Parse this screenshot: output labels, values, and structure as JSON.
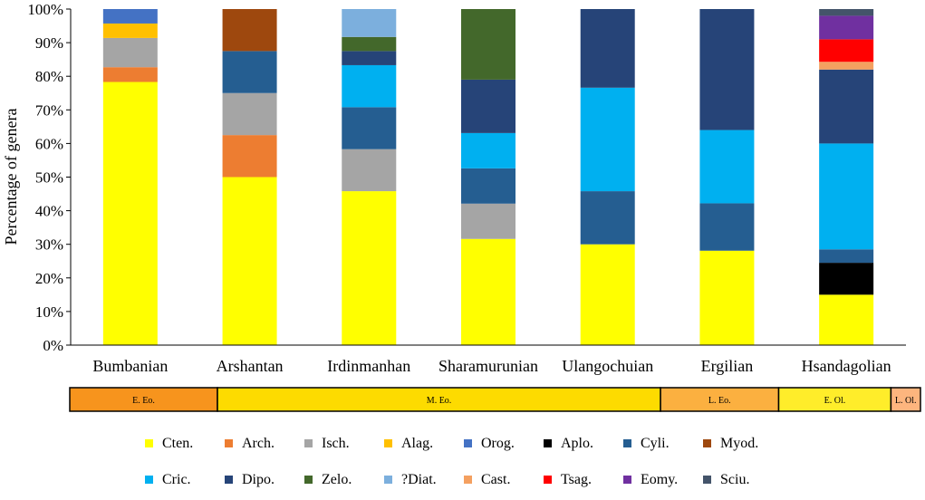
{
  "chart_data": {
    "type": "bar",
    "stacked": true,
    "ylabel": "Percentage of genera",
    "xlabel": "",
    "ylim": [
      0,
      100
    ],
    "y_ticks": [
      "0%",
      "10%",
      "20%",
      "30%",
      "40%",
      "50%",
      "60%",
      "70%",
      "80%",
      "90%",
      "100%"
    ],
    "categories": [
      "Bumbanian",
      "Arshantan",
      "Irdinmanhan",
      "Sharamurunian",
      "Ulangochuian",
      "Ergilian",
      "Hsandagolian"
    ],
    "series": [
      {
        "name": "Cten.",
        "color": "#FFFF00",
        "values": [
          78.3,
          50,
          45.8,
          31.6,
          30,
          28.1,
          15
        ]
      },
      {
        "name": "Arch.",
        "color": "#ED7D31",
        "values": [
          4.4,
          12.5,
          0,
          0,
          0,
          0,
          0
        ]
      },
      {
        "name": "Isch.",
        "color": "#A5A5A5",
        "values": [
          8.7,
          12.5,
          12.5,
          10.5,
          0,
          0,
          0
        ]
      },
      {
        "name": "Alag.",
        "color": "#FFC000",
        "values": [
          4.3,
          0,
          0,
          0,
          0,
          0,
          0
        ]
      },
      {
        "name": "Orog.",
        "color": "#4472C4",
        "values": [
          4.3,
          0,
          0,
          0,
          0,
          0,
          0
        ]
      },
      {
        "name": "Aplo.",
        "color": "#000000",
        "values": [
          0,
          0,
          0,
          0,
          0,
          0,
          9.5
        ]
      },
      {
        "name": "Cyli.",
        "color": "#255E91",
        "values": [
          0,
          12.5,
          12.5,
          10.5,
          15.8,
          14.1,
          4
        ]
      },
      {
        "name": "Myod.",
        "color": "#9E480E",
        "values": [
          0,
          12.5,
          0,
          0,
          0,
          0,
          0
        ]
      },
      {
        "name": "Cric.",
        "color": "#00B0F0",
        "values": [
          0,
          0,
          12.5,
          10.5,
          30.8,
          21.8,
          31.5
        ]
      },
      {
        "name": "Dipo.",
        "color": "#264478",
        "values": [
          0,
          0,
          4.2,
          15.9,
          23.4,
          36,
          22
        ]
      },
      {
        "name": "Zelo.",
        "color": "#43682B",
        "values": [
          0,
          0,
          4.2,
          21,
          0,
          0,
          0
        ]
      },
      {
        "name": "?Diat.",
        "color": "#7CAFDD",
        "values": [
          0,
          0,
          8.3,
          0,
          0,
          0,
          0
        ]
      },
      {
        "name": "Cast.",
        "color": "#F4A060",
        "values": [
          0,
          0,
          0,
          0,
          0,
          0,
          2.3
        ]
      },
      {
        "name": "Tsag.",
        "color": "#FF0000",
        "values": [
          0,
          0,
          0,
          0,
          0,
          0,
          6.7
        ]
      },
      {
        "name": "Eomy.",
        "color": "#7030A0",
        "values": [
          0,
          0,
          0,
          0,
          0,
          0,
          7
        ]
      },
      {
        "name": "Sciu.",
        "color": "#44546A",
        "values": [
          0,
          0,
          0,
          0,
          0,
          0,
          2
        ]
      }
    ],
    "epochs": [
      {
        "label": "E. Eo.",
        "color": "#F7941D",
        "span": [
          0,
          1.25
        ]
      },
      {
        "label": "M. Eo.",
        "color": "#FDDB00",
        "span": [
          1.25,
          5
        ]
      },
      {
        "label": "L. Eo.",
        "color": "#FBB040",
        "span": [
          5,
          6
        ]
      },
      {
        "label": "E. Ol.",
        "color": "#FFED2A",
        "span": [
          6,
          6.95
        ]
      },
      {
        "label": "L. Ol.",
        "color": "#FDB57E",
        "span": [
          6.95,
          7.2
        ]
      }
    ]
  }
}
